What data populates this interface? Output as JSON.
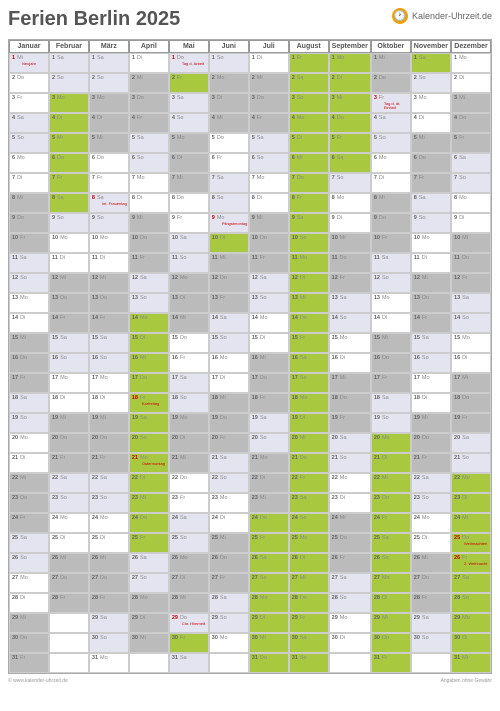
{
  "title": "Ferien Berlin 2025",
  "logo_text": "Kalender-Uhrzeit.de",
  "months": [
    "Januar",
    "Februar",
    "März",
    "April",
    "Mai",
    "Juni",
    "Juli",
    "August",
    "September",
    "Oktober",
    "November",
    "Dezember"
  ],
  "weekdays": [
    "Mo",
    "Di",
    "Mi",
    "Do",
    "Fr",
    "Sa",
    "So"
  ],
  "start_dow": [
    2,
    5,
    5,
    1,
    3,
    6,
    1,
    4,
    0,
    2,
    5,
    0
  ],
  "days_in_month": [
    31,
    28,
    31,
    30,
    31,
    30,
    31,
    31,
    30,
    31,
    30,
    31
  ],
  "holidays": {
    "0": {
      "ranges": []
    },
    "1": {
      "ranges": [
        [
          3,
          8
        ]
      ]
    },
    "2": {
      "ranges": []
    },
    "3": {
      "ranges": [
        [
          14,
          25
        ]
      ]
    },
    "4": {
      "ranges": [
        [
          2,
          2
        ],
        [
          30,
          30
        ]
      ]
    },
    "5": {
      "ranges": [
        [
          10,
          10
        ]
      ]
    },
    "6": {
      "ranges": [
        [
          24,
          31
        ]
      ]
    },
    "7": {
      "ranges": [
        [
          1,
          31
        ]
      ]
    },
    "8": {
      "ranges": [
        [
          1,
          6
        ]
      ]
    },
    "9": {
      "ranges": [
        [
          20,
          31
        ]
      ]
    },
    "10": {
      "ranges": [
        [
          1,
          1
        ]
      ]
    },
    "11": {
      "ranges": [
        [
          22,
          31
        ]
      ]
    }
  },
  "public_holidays": {
    "0-1": "Neujahr",
    "2-8": "Int. Frauentag",
    "3-18": "Karfreitag",
    "3-21": "Ostermontag",
    "4-1": "Tag d. Arbeit",
    "4-29": "Chr. Himmelf.",
    "5-9": "Pfingstmontag",
    "9-3": "Tag d. dt. Einheit",
    "11-25": "Weihnachten",
    "11-26": "2. Weihnacht"
  },
  "footer_left": "© www.kalender-uhrzeit.de",
  "footer_right": "Angaben ohne Gewähr",
  "colors": {
    "holiday": "#a8c93f",
    "weekend": "#e4e4f0",
    "gray": "#bbbbbb"
  }
}
